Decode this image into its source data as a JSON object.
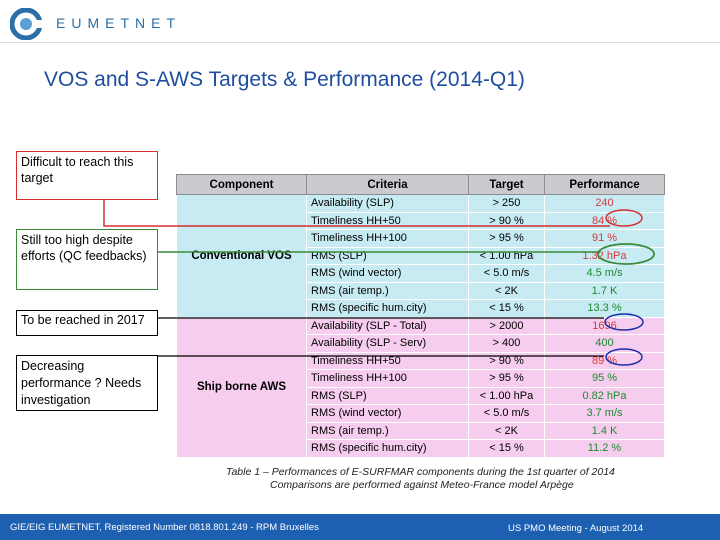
{
  "brand": {
    "name": "EUMETNET"
  },
  "title": "VOS and S-AWS Targets & Performance (2014-Q1)",
  "notes": {
    "difficult": "Difficult to reach this target",
    "still_high": "Still too high despite efforts (QC feedbacks)",
    "to_be_reached": "To be reached in 2017",
    "decreasing": "Decreasing performance ? Needs investigation"
  },
  "table": {
    "headers": {
      "component": "Component",
      "criteria": "Criteria",
      "target": "Target",
      "performance": "Performance"
    },
    "groups": [
      {
        "component": "Conventional VOS",
        "rows": [
          {
            "criteria": "Availability (SLP)",
            "target": "> 250",
            "performance": "240"
          },
          {
            "criteria": "Timeliness HH+50",
            "target": "> 90 %",
            "performance": "84 %"
          },
          {
            "criteria": "Timeliness HH+100",
            "target": "> 95 %",
            "performance": "91 %"
          },
          {
            "criteria": "RMS (SLP)",
            "target": "< 1.00 hPa",
            "performance": "1.32 hPa"
          },
          {
            "criteria": "RMS (wind vector)",
            "target": "< 5.0 m/s",
            "performance": "4.5 m/s"
          },
          {
            "criteria": "RMS (air temp.)",
            "target": "< 2K",
            "performance": "1.7 K"
          },
          {
            "criteria": "RMS (specific hum.city)",
            "target": "< 15 %",
            "performance": "13.3 %"
          }
        ]
      },
      {
        "component": "Ship borne AWS",
        "rows": [
          {
            "criteria": "Availability (SLP - Total)",
            "target": "> 2000",
            "performance": "1696"
          },
          {
            "criteria": "Availability (SLP - Serv)",
            "target": "> 400",
            "performance": "400"
          },
          {
            "criteria": "Timeliness HH+50",
            "target": "> 90 %",
            "performance": "89 %"
          },
          {
            "criteria": "Timeliness HH+100",
            "target": "> 95 %",
            "performance": "95 %"
          },
          {
            "criteria": "RMS (SLP)",
            "target": "< 1.00 hPa",
            "performance": "0.82 hPa"
          },
          {
            "criteria": "RMS (wind vector)",
            "target": "< 5.0 m/s",
            "performance": "3.7 m/s"
          },
          {
            "criteria": "RMS (air temp.)",
            "target": "< 2K",
            "performance": "1.4 K"
          },
          {
            "criteria": "RMS (specific hum.city)",
            "target": "< 15 %",
            "performance": "11.2 %"
          }
        ]
      }
    ]
  },
  "caption": {
    "line1": "Table 1 – Performances of E-SURFMAR components during the 1st quarter of 2014",
    "line2": "Comparisons are performed against Meteo-France model Arpège"
  },
  "footer": {
    "left": "GIE/EIG EUMETNET, Registered Number 0818.801.249 - RPM Bruxelles",
    "right": "US PMO Meeting - August 2014"
  },
  "colors": {
    "title": "#1f4ea0",
    "footer_bg": "#1d5fb0",
    "vos_rows": "#c7ebf2",
    "ship_rows": "#f6cdee",
    "good_value": "#1c8a2e",
    "red_marker": "#d43030",
    "green_marker": "#3a8a3a",
    "blue_marker": "#1b2fa8"
  }
}
